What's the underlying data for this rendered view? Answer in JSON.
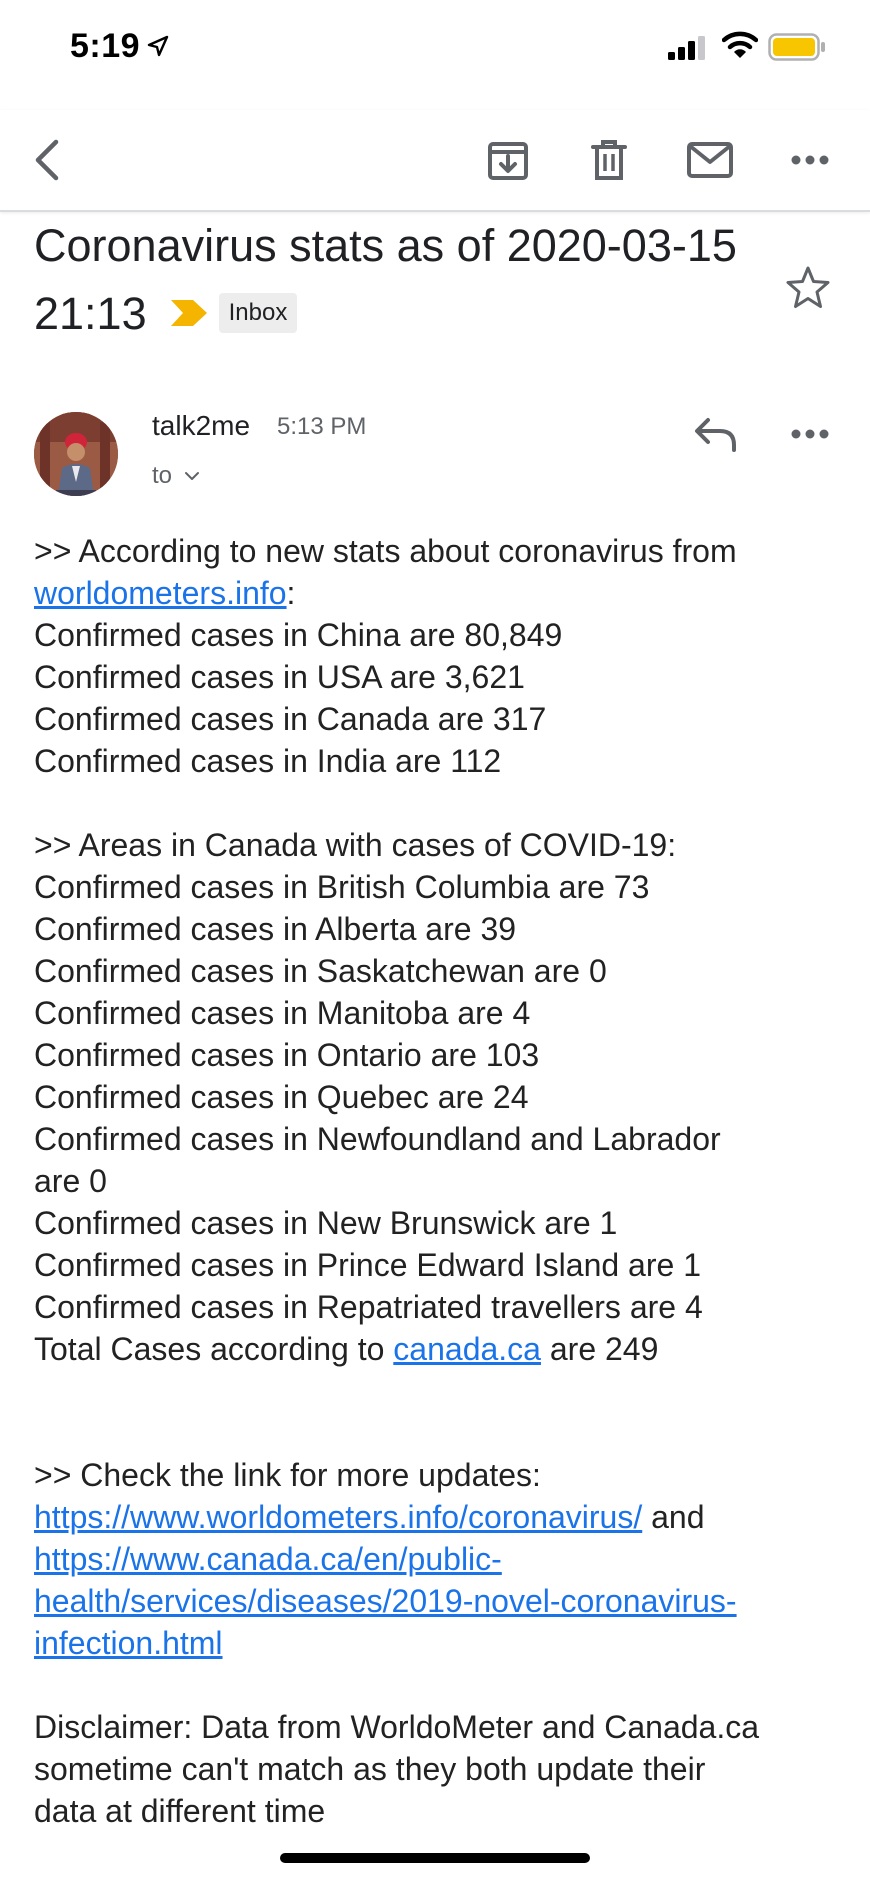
{
  "status_bar": {
    "time": "5:19",
    "battery_color": "#f7c600"
  },
  "toolbar": {
    "icons": [
      "back-icon",
      "archive-icon",
      "trash-icon",
      "mail-icon",
      "more-icon"
    ]
  },
  "email": {
    "subject": "Coronavirus stats as of 2020-03-15 21:13",
    "label": "Inbox",
    "importance_color": "#f4b400",
    "sender": "talk2me",
    "time": "5:13 PM",
    "to_label": "to",
    "body": {
      "intro_prefix": ">> According to new stats about coronavirus from ",
      "intro_link": "worldometers.info",
      "intro_suffix": ":",
      "global_cases": [
        "Confirmed cases in China are 80,849",
        "Confirmed cases in USA are 3,621",
        "Confirmed cases in Canada are 317",
        "Confirmed cases in India are 112"
      ],
      "canada_heading": ">> Areas in Canada with cases of COVID-19:",
      "canada_cases": [
        "Confirmed cases in British Columbia are 73",
        "Confirmed cases in Alberta are 39",
        "Confirmed cases in Saskatchewan are 0",
        "Confirmed cases in Manitoba are 4",
        "Confirmed cases in Ontario are 103",
        "Confirmed cases in Quebec are 24",
        "Confirmed cases in Newfoundland and Labrador",
        "are 0",
        "Confirmed cases in New Brunswick are 1",
        "Confirmed cases in Prince Edward Island are 1",
        "Confirmed cases in Repatriated travellers are 4"
      ],
      "total_prefix": "Total Cases according to ",
      "total_link": "canada.ca",
      "total_suffix": " are 249",
      "check_heading": ">> Check the link for more updates:",
      "link1": "https://www.worldometers.info/coronavirus/",
      "and_text": " and",
      "link2_lines": [
        "https://www.canada.ca/en/public-",
        "health/services/diseases/2019-novel-coronavirus-",
        "infection.html"
      ],
      "disclaimer_lines": [
        "Disclaimer: Data from WorldoMeter and Canada.ca",
        "sometime can't match as they both update their",
        "data at different time"
      ]
    }
  }
}
